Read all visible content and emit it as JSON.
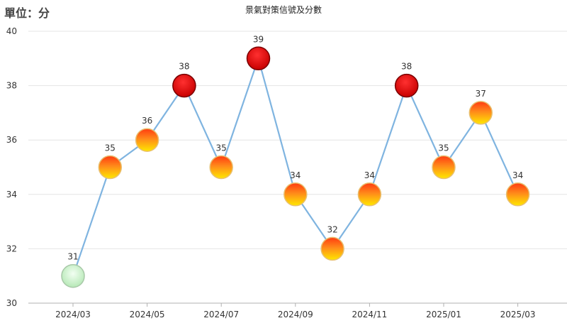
{
  "unit_label": "單位：分",
  "chart_data": {
    "type": "line",
    "title": "景氣對策信號及分數",
    "ylabel": "單位：分",
    "xlabel": "",
    "ylim": [
      30,
      40
    ],
    "yticks": [
      30,
      32,
      34,
      36,
      38,
      40
    ],
    "x": [
      "2024/03",
      "2024/04",
      "2024/05",
      "2024/06",
      "2024/07",
      "2024/08",
      "2024/09",
      "2024/10",
      "2024/11",
      "2024/12",
      "2025/01",
      "2025/02",
      "2025/03"
    ],
    "xtick_labels": [
      "2024/03",
      "2024/05",
      "2024/07",
      "2024/09",
      "2024/11",
      "2025/01",
      "2025/03"
    ],
    "values": [
      31,
      35,
      36,
      38,
      35,
      39,
      34,
      32,
      34,
      38,
      35,
      37,
      34
    ],
    "signal": [
      "green",
      "yellow-red",
      "yellow-red",
      "red",
      "yellow-red",
      "red",
      "yellow-red",
      "yellow-red",
      "yellow-red",
      "red",
      "yellow-red",
      "yellow-red",
      "yellow-red"
    ],
    "grid": true,
    "line_color": "#7fb4e0",
    "colors": {
      "green": "#c8f0c8",
      "yellow-red": "#ffd400",
      "red": "#e00000"
    }
  }
}
